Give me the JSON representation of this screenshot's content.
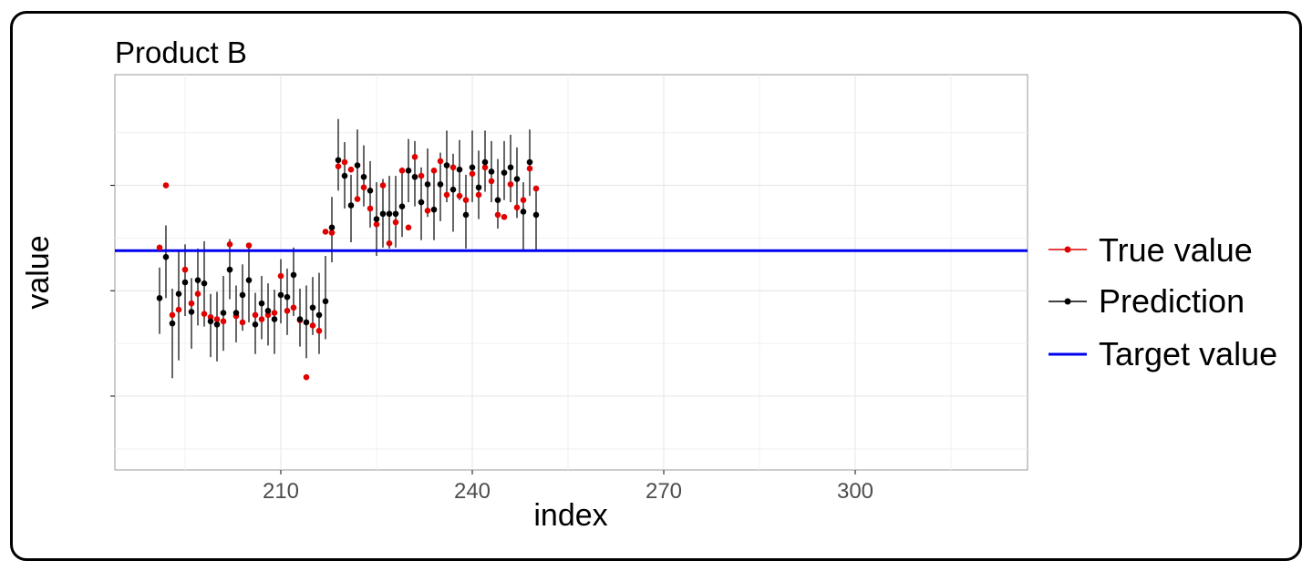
{
  "chart_data": {
    "type": "scatter",
    "title": "Product B",
    "xlabel": "index",
    "ylabel": "value",
    "x_ticks": [
      210,
      240,
      270,
      300
    ],
    "xlim": [
      184,
      327
    ],
    "ylim": [
      -1.7,
      2.05
    ],
    "y_ticks": [
      -1.0,
      0.0,
      1.0
    ],
    "y_tick_labels_visible": false,
    "grid": true,
    "legend_position": "right",
    "colors": {
      "true_value": "#e00000",
      "prediction": "#000000",
      "target": "#0000ee"
    },
    "target_value": 0.38,
    "series": [
      {
        "name": "True value",
        "key": "true"
      },
      {
        "name": "Prediction",
        "key": "pred",
        "error_bars": true
      },
      {
        "name": "Target value",
        "key": "target"
      }
    ],
    "points": [
      {
        "x": 191,
        "true": 0.41,
        "pred": -0.07,
        "lo": -0.41,
        "hi": 0.22
      },
      {
        "x": 192,
        "true": 1.0,
        "pred": 0.32,
        "lo": -0.07,
        "hi": 0.62
      },
      {
        "x": 193,
        "true": -0.23,
        "pred": -0.31,
        "lo": -0.83,
        "hi": 0.02
      },
      {
        "x": 194,
        "true": -0.18,
        "pred": -0.03,
        "lo": -0.66,
        "hi": 0.39
      },
      {
        "x": 195,
        "true": 0.2,
        "pred": 0.08,
        "lo": -0.24,
        "hi": 0.44
      },
      {
        "x": 196,
        "true": -0.12,
        "pred": -0.2,
        "lo": -0.55,
        "hi": 0.12
      },
      {
        "x": 197,
        "true": -0.03,
        "pred": 0.1,
        "lo": -0.33,
        "hi": 0.4
      },
      {
        "x": 198,
        "true": -0.22,
        "pred": 0.07,
        "lo": -0.34,
        "hi": 0.47
      },
      {
        "x": 199,
        "true": -0.25,
        "pred": -0.29,
        "lo": -0.63,
        "hi": -0.03
      },
      {
        "x": 200,
        "true": -0.27,
        "pred": -0.32,
        "lo": -0.67,
        "hi": -0.01
      },
      {
        "x": 201,
        "true": -0.29,
        "pred": -0.21,
        "lo": -0.57,
        "hi": 0.14
      },
      {
        "x": 202,
        "true": 0.44,
        "pred": 0.2,
        "lo": -0.08,
        "hi": 0.49
      },
      {
        "x": 203,
        "true": -0.24,
        "pred": -0.21,
        "lo": -0.49,
        "hi": 0.05
      },
      {
        "x": 204,
        "true": -0.3,
        "pred": -0.04,
        "lo": -0.38,
        "hi": 0.25
      },
      {
        "x": 205,
        "true": 0.43,
        "pred": 0.1,
        "lo": -0.3,
        "hi": 0.41
      },
      {
        "x": 206,
        "true": -0.23,
        "pred": -0.32,
        "lo": -0.6,
        "hi": -0.02
      },
      {
        "x": 207,
        "true": -0.27,
        "pred": -0.12,
        "lo": -0.46,
        "hi": 0.14
      },
      {
        "x": 208,
        "true": -0.23,
        "pred": -0.19,
        "lo": -0.52,
        "hi": 0.07
      },
      {
        "x": 209,
        "true": -0.21,
        "pred": -0.27,
        "lo": -0.6,
        "hi": 0.01
      },
      {
        "x": 210,
        "true": 0.14,
        "pred": -0.04,
        "lo": -0.31,
        "hi": 0.3
      },
      {
        "x": 211,
        "true": -0.19,
        "pred": -0.06,
        "lo": -0.42,
        "hi": 0.21
      },
      {
        "x": 212,
        "true": -0.16,
        "pred": 0.15,
        "lo": -0.24,
        "hi": 0.41
      },
      {
        "x": 213,
        "true": -0.28,
        "pred": -0.27,
        "lo": -0.53,
        "hi": 0.02
      },
      {
        "x": 214,
        "true": -0.82,
        "pred": -0.3,
        "lo": -0.64,
        "hi": 0.05
      },
      {
        "x": 215,
        "true": -0.33,
        "pred": -0.16,
        "lo": -0.42,
        "hi": 0.13
      },
      {
        "x": 216,
        "true": -0.38,
        "pred": -0.23,
        "lo": -0.6,
        "hi": 0.17
      },
      {
        "x": 217,
        "true": 0.56,
        "pred": -0.1,
        "lo": -0.46,
        "hi": 0.33
      },
      {
        "x": 218,
        "true": 0.55,
        "pred": 0.6,
        "lo": 0.27,
        "hi": 0.89
      },
      {
        "x": 219,
        "true": 1.18,
        "pred": 1.24,
        "lo": 0.95,
        "hi": 1.63
      },
      {
        "x": 220,
        "true": 1.22,
        "pred": 1.09,
        "lo": 0.78,
        "hi": 1.41
      },
      {
        "x": 221,
        "true": 1.15,
        "pred": 0.81,
        "lo": 0.46,
        "hi": 1.1
      },
      {
        "x": 222,
        "true": 0.87,
        "pred": 1.19,
        "lo": 0.88,
        "hi": 1.53
      },
      {
        "x": 223,
        "true": 0.98,
        "pred": 1.08,
        "lo": 0.8,
        "hi": 1.38
      },
      {
        "x": 224,
        "true": 0.78,
        "pred": 0.95,
        "lo": 0.6,
        "hi": 1.23
      },
      {
        "x": 225,
        "true": 0.63,
        "pred": 0.68,
        "lo": 0.33,
        "hi": 1.03
      },
      {
        "x": 226,
        "true": 1.0,
        "pred": 0.73,
        "lo": 0.41,
        "hi": 1.06
      },
      {
        "x": 227,
        "true": 0.45,
        "pred": 0.73,
        "lo": 0.4,
        "hi": 1.09
      },
      {
        "x": 228,
        "true": 0.65,
        "pred": 0.73,
        "lo": 0.41,
        "hi": 1.09
      },
      {
        "x": 229,
        "true": 1.14,
        "pred": 0.8,
        "lo": 0.51,
        "hi": 1.17
      },
      {
        "x": 230,
        "true": 0.6,
        "pred": 1.14,
        "lo": 0.84,
        "hi": 1.44
      },
      {
        "x": 231,
        "true": 1.27,
        "pred": 1.08,
        "lo": 0.8,
        "hi": 1.42
      },
      {
        "x": 232,
        "true": 1.09,
        "pred": 0.84,
        "lo": 0.48,
        "hi": 1.17
      },
      {
        "x": 233,
        "true": 0.76,
        "pred": 1.01,
        "lo": 0.7,
        "hi": 1.35
      },
      {
        "x": 234,
        "true": 1.14,
        "pred": 0.77,
        "lo": 0.48,
        "hi": 1.13
      },
      {
        "x": 235,
        "true": 1.23,
        "pred": 1.01,
        "lo": 0.66,
        "hi": 1.31
      },
      {
        "x": 236,
        "true": 0.91,
        "pred": 1.19,
        "lo": 0.84,
        "hi": 1.52
      },
      {
        "x": 237,
        "true": 1.17,
        "pred": 0.96,
        "lo": 0.56,
        "hi": 1.3
      },
      {
        "x": 238,
        "true": 0.9,
        "pred": 1.15,
        "lo": 0.86,
        "hi": 1.43
      },
      {
        "x": 239,
        "true": 0.86,
        "pred": 0.72,
        "lo": 0.4,
        "hi": 1.1
      },
      {
        "x": 240,
        "true": 1.11,
        "pred": 1.17,
        "lo": 0.84,
        "hi": 1.52
      },
      {
        "x": 241,
        "true": 0.91,
        "pred": 0.98,
        "lo": 0.68,
        "hi": 1.33
      },
      {
        "x": 242,
        "true": 1.17,
        "pred": 1.22,
        "lo": 0.94,
        "hi": 1.52
      },
      {
        "x": 243,
        "true": 1.04,
        "pred": 1.13,
        "lo": 0.84,
        "hi": 1.42
      },
      {
        "x": 244,
        "true": 0.72,
        "pred": 0.86,
        "lo": 0.59,
        "hi": 1.25
      },
      {
        "x": 245,
        "true": 0.7,
        "pred": 1.12,
        "lo": 0.86,
        "hi": 1.42
      },
      {
        "x": 246,
        "true": 1.01,
        "pred": 1.17,
        "lo": 0.84,
        "hi": 1.48
      },
      {
        "x": 247,
        "true": 0.79,
        "pred": 1.06,
        "lo": 0.69,
        "hi": 1.36
      },
      {
        "x": 248,
        "true": 0.86,
        "pred": 0.75,
        "lo": 0.39,
        "hi": 1.03
      },
      {
        "x": 249,
        "true": 1.16,
        "pred": 1.22,
        "lo": 0.9,
        "hi": 1.53
      },
      {
        "x": 250,
        "true": 0.97,
        "pred": 0.72,
        "lo": 0.38,
        "hi": 0.99
      }
    ],
    "points_right": []
  }
}
